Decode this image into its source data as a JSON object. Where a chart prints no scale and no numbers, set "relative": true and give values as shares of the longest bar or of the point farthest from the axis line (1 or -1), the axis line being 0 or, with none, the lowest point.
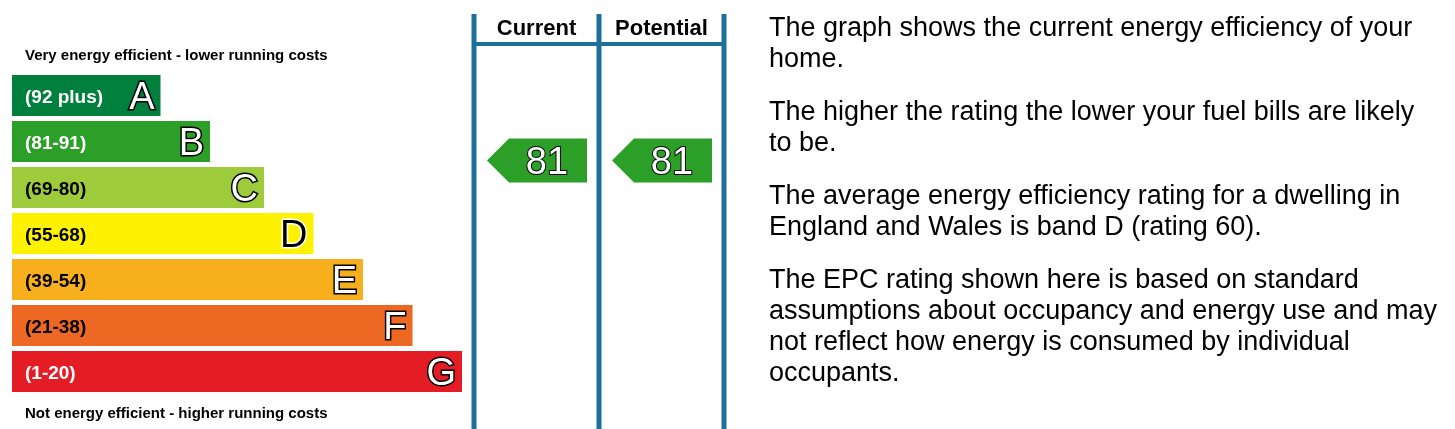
{
  "chart_data": [
    {
      "type": "bar",
      "orientation": "horizontal",
      "relative": true,
      "title": "Very energy efficient - lower running costs",
      "xlabel": "Not energy efficient - higher running costs",
      "categories": [
        "(92 plus)",
        "(81-91)",
        "(69-80)",
        "(55-68)",
        "(39-54)",
        "(21-38)",
        "(1-20)"
      ],
      "values": [
        0.33,
        0.44,
        0.56,
        0.67,
        0.78,
        0.89,
        1
      ],
      "colors": [
        "#007f3d",
        "#2c9f29",
        "#9dcb3c",
        "#fff200",
        "#f7af1d",
        "#ed6823",
        "#e31d23"
      ],
      "annotations": [
        {
          "text": "A",
          "y": "(92 plus)"
        },
        {
          "text": "B",
          "y": "(81-91)"
        },
        {
          "text": "C",
          "y": "(69-80)"
        },
        {
          "text": "D",
          "y": "(55-68)"
        },
        {
          "text": "E",
          "y": "(39-54)"
        },
        {
          "text": "F",
          "y": "(21-38)"
        },
        {
          "text": "G",
          "y": "(1-20)"
        }
      ]
    },
    {
      "type": "other",
      "categories": [
        "Current",
        "Potential"
      ],
      "values": [
        81,
        81
      ],
      "data_labels": true,
      "colors": [
        "#2c9f29",
        "#2c9f29"
      ]
    },
    {
      "type": "other",
      "annotations": [
        "The graph shows the current energy efficiency of your home.",
        "The higher the rating the lower your fuel bills are likely to be.",
        "The average energy efficiency rating for a dwelling in England and Wales is band D (rating 60).",
        "The EPC rating shown here is based on standard assumptions about occupancy and energy use and may not reflect how energy is consumed by individual occupants."
      ]
    }
  ]
}
